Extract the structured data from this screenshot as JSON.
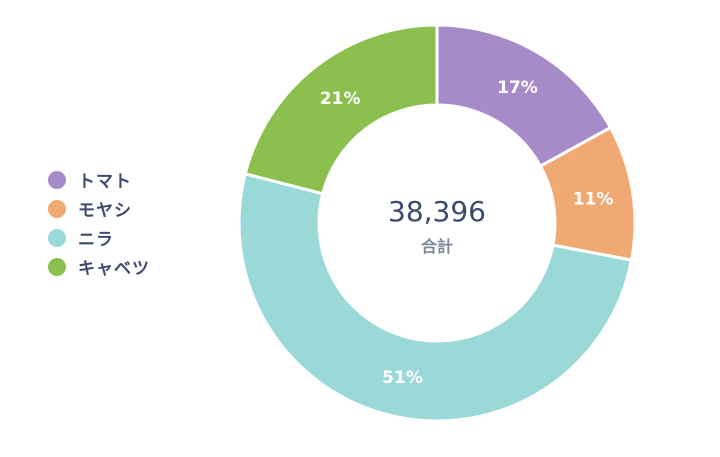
{
  "chart_data": {
    "type": "pie",
    "variant": "donut",
    "categories": [
      "トマト",
      "モヤシ",
      "ニラ",
      "キャベツ"
    ],
    "values": [
      17,
      11,
      51,
      21
    ],
    "value_labels": [
      "17%",
      "11%",
      "51%",
      "21%"
    ],
    "colors": [
      "#a78bc8",
      "#f0a972",
      "#9bd9d8",
      "#8bc04f"
    ],
    "center": {
      "total": "38,396",
      "label": "合計"
    },
    "legend_position": "left"
  }
}
